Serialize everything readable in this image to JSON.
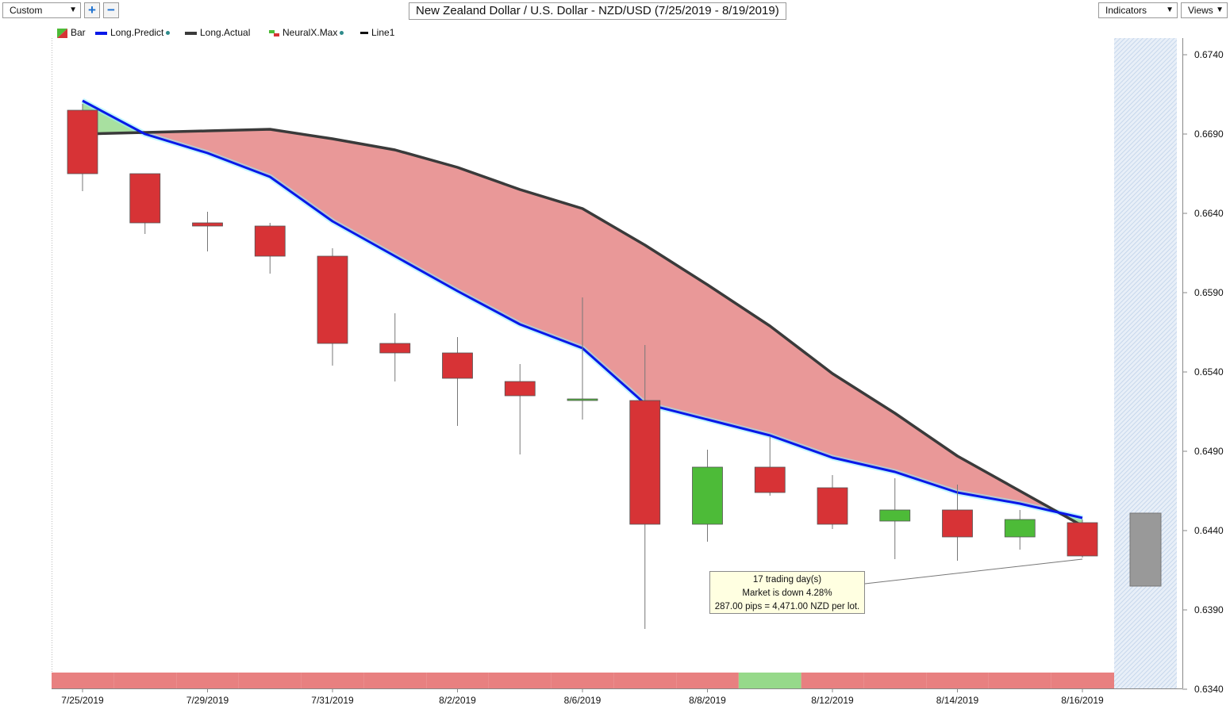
{
  "toolbar": {
    "mode_select": "Custom",
    "zoom_in_glyph": "+",
    "zoom_out_glyph": "−",
    "indicators_label": "Indicators",
    "views_label": "Views"
  },
  "colors": {
    "bear_candle": "#d73336",
    "bull_candle": "#4dbb38",
    "predict_line": "#0818e8",
    "actual_line": "#3a3a3a",
    "fill_bear": "#e99898",
    "fill_bull": "#a8e0a0",
    "strip_bear": "#e88080",
    "strip_bull": "#96d98a",
    "future_area": "#dce8f5",
    "forecast_candle": "#999999"
  },
  "chart_data": {
    "type": "candlestick",
    "title": "New Zealand Dollar / U.S. Dollar - NZD/USD (7/25/2019 - 8/19/2019)",
    "legend": [
      {
        "label": "Bar",
        "icon": "bar-icon"
      },
      {
        "label": "Long.Predict",
        "icon": "blue-line-icon"
      },
      {
        "label": "Long.Actual",
        "icon": "dark-line-icon"
      },
      {
        "label": "NeuralX.Max",
        "icon": "neuralx-icon"
      },
      {
        "label": "Line1",
        "icon": "black-line-icon"
      }
    ],
    "ylim": [
      0.634,
      0.6756
    ],
    "y_ticks": [
      "0.6740",
      "0.6690",
      "0.6640",
      "0.6590",
      "0.6540",
      "0.6490",
      "0.6440",
      "0.6390",
      "0.6340"
    ],
    "x_ticks": [
      {
        "i": 0,
        "label": "7/25/2019"
      },
      {
        "i": 2,
        "label": "7/29/2019"
      },
      {
        "i": 4,
        "label": "7/31/2019"
      },
      {
        "i": 6,
        "label": "8/2/2019"
      },
      {
        "i": 8,
        "label": "8/6/2019"
      },
      {
        "i": 10,
        "label": "8/8/2019"
      },
      {
        "i": 12,
        "label": "8/12/2019"
      },
      {
        "i": 14,
        "label": "8/14/2019"
      },
      {
        "i": 16,
        "label": "8/16/2019"
      }
    ],
    "candles": [
      {
        "o": 0.6705,
        "h": 0.6709,
        "l": 0.6654,
        "c": 0.6665
      },
      {
        "o": 0.6665,
        "h": 0.6665,
        "l": 0.6627,
        "c": 0.6634
      },
      {
        "o": 0.6634,
        "h": 0.6641,
        "l": 0.6616,
        "c": 0.6632
      },
      {
        "o": 0.6632,
        "h": 0.6634,
        "l": 0.6602,
        "c": 0.6613
      },
      {
        "o": 0.6613,
        "h": 0.6618,
        "l": 0.6544,
        "c": 0.6558
      },
      {
        "o": 0.6558,
        "h": 0.6577,
        "l": 0.6534,
        "c": 0.6552
      },
      {
        "o": 0.6552,
        "h": 0.6562,
        "l": 0.6506,
        "c": 0.6536
      },
      {
        "o": 0.6534,
        "h": 0.6545,
        "l": 0.6488,
        "c": 0.6525
      },
      {
        "o": 0.6522,
        "h": 0.6587,
        "l": 0.651,
        "c": 0.6523
      },
      {
        "o": 0.6522,
        "h": 0.6557,
        "l": 0.6378,
        "c": 0.6444
      },
      {
        "o": 0.6444,
        "h": 0.6491,
        "l": 0.6433,
        "c": 0.648
      },
      {
        "o": 0.648,
        "h": 0.6499,
        "l": 0.6462,
        "c": 0.6464
      },
      {
        "o": 0.6467,
        "h": 0.6475,
        "l": 0.6441,
        "c": 0.6444
      },
      {
        "o": 0.6446,
        "h": 0.6473,
        "l": 0.6422,
        "c": 0.6453
      },
      {
        "o": 0.6453,
        "h": 0.6469,
        "l": 0.6421,
        "c": 0.6436
      },
      {
        "o": 0.6436,
        "h": 0.6453,
        "l": 0.6428,
        "c": 0.6447
      },
      {
        "o": 0.6445,
        "h": 0.6447,
        "l": 0.6423,
        "c": 0.6424
      }
    ],
    "long_predict": [
      0.6711,
      0.669,
      0.6678,
      0.6663,
      0.6635,
      0.6613,
      0.6591,
      0.657,
      0.6555,
      0.652,
      0.651,
      0.65,
      0.6486,
      0.6477,
      0.6464,
      0.6457,
      0.6448
    ],
    "long_actual": [
      0.669,
      0.6691,
      0.6692,
      0.6693,
      0.6687,
      0.668,
      0.6669,
      0.6655,
      0.6643,
      0.662,
      0.6595,
      0.6569,
      0.6539,
      0.6514,
      0.6487,
      0.6465,
      0.6443
    ],
    "regime_strip": [
      "bear",
      "bear",
      "bear",
      "bear",
      "bear",
      "bear",
      "bear",
      "bear",
      "bear",
      "bear",
      "bear",
      "bull",
      "bear",
      "bear",
      "bear",
      "bear",
      "bear"
    ],
    "forecast_candle": {
      "top": 0.6451,
      "bottom": 0.6405
    },
    "annotation": {
      "lines": [
        "17 trading day(s)",
        "Market is down 4.28%",
        "287.00 pips = 4,471.00 NZD per lot."
      ],
      "target_index": 16,
      "target_value": 0.6422
    }
  }
}
